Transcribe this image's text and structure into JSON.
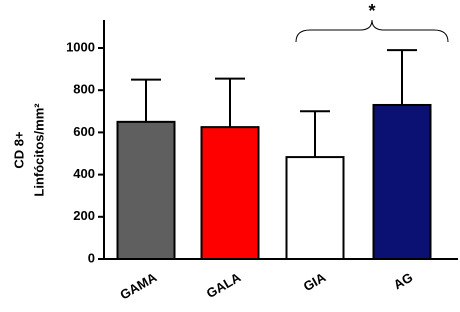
{
  "chart_data": {
    "type": "bar",
    "y_label": [
      "CD 8+",
      "Linfócitos/mm²"
    ],
    "categories": [
      "GAMA",
      "GALA",
      "GIA",
      "AG"
    ],
    "values": [
      650,
      625,
      483,
      730
    ],
    "errors": [
      200,
      230,
      217,
      260
    ],
    "colors": [
      "#5f5f5f",
      "#ff0000",
      "#ffffff",
      "#0a1172"
    ],
    "ylim": [
      0,
      1000
    ],
    "yticks": [
      0,
      200,
      400,
      600,
      800,
      1000
    ],
    "annotation": "*"
  }
}
